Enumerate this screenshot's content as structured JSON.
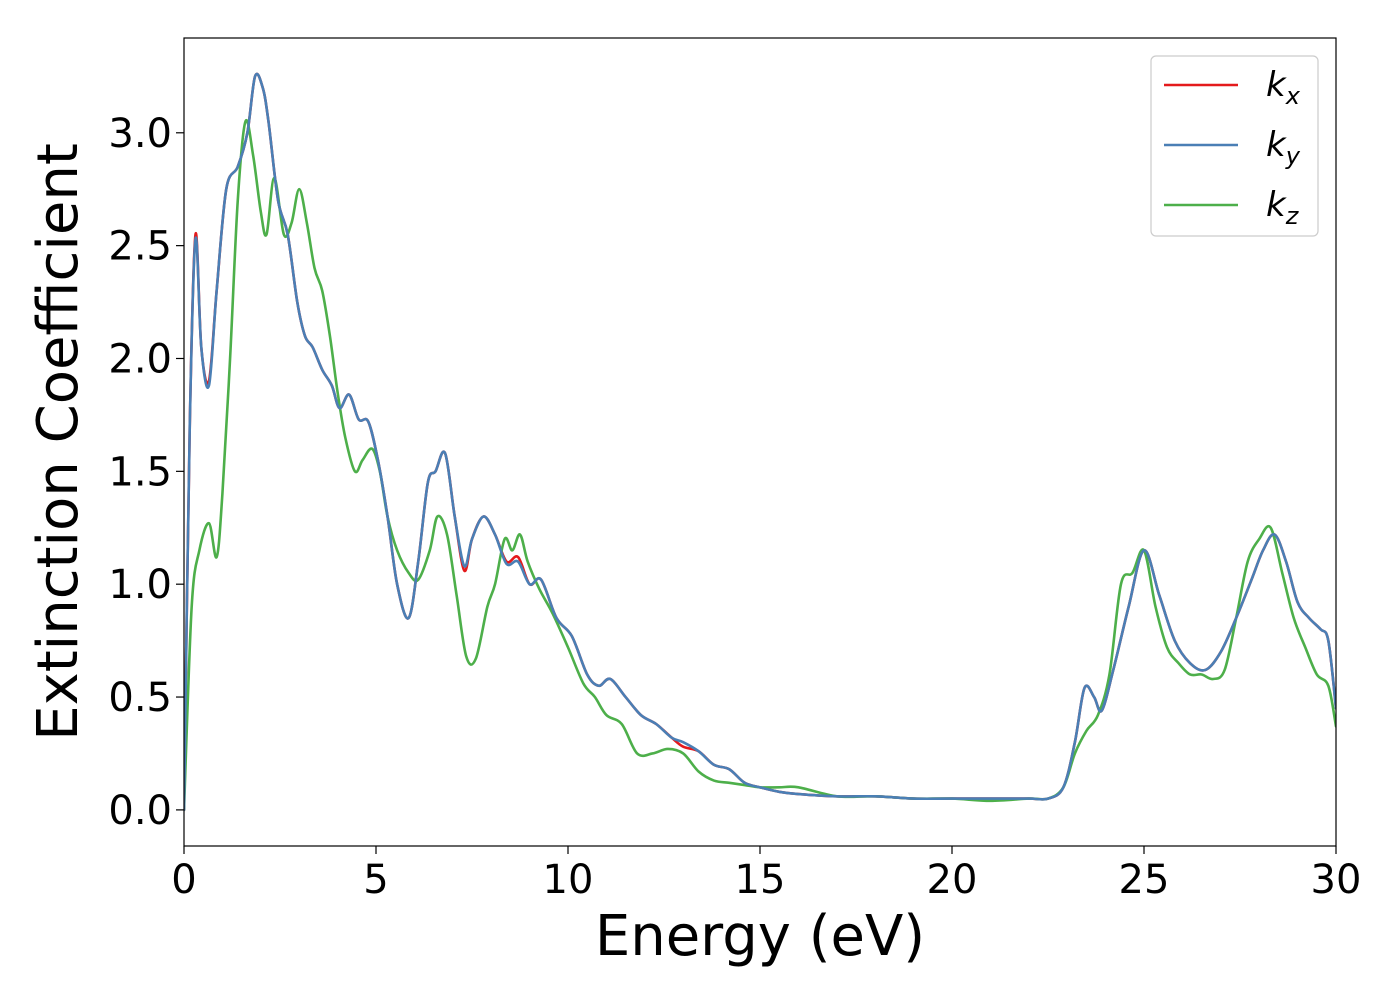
{
  "chart_data": {
    "type": "line",
    "title": "",
    "xlabel": "Energy (eV)",
    "ylabel": "Extinction Coefficient",
    "xlim": [
      0,
      30
    ],
    "ylim": [
      -0.16,
      3.42
    ],
    "xticks": [
      0,
      5,
      10,
      15,
      20,
      25,
      30
    ],
    "xtick_labels": [
      "0",
      "5",
      "10",
      "15",
      "20",
      "25",
      "30"
    ],
    "yticks": [
      0.0,
      0.5,
      1.0,
      1.5,
      2.0,
      2.5,
      3.0
    ],
    "ytick_labels": [
      "0.0",
      "0.5",
      "1.0",
      "1.5",
      "2.0",
      "2.5",
      "3.0"
    ],
    "grid": false,
    "legend_position": "top-right",
    "series": [
      {
        "name": "k_x",
        "label_main": "k",
        "label_sub": "x",
        "color": "#e41a1c",
        "x": [
          0,
          0.15,
          0.3,
          0.45,
          0.65,
          0.85,
          1.1,
          1.4,
          1.65,
          1.85,
          2.05,
          2.2,
          2.45,
          2.7,
          2.95,
          3.15,
          3.35,
          3.6,
          3.85,
          4.05,
          4.3,
          4.55,
          4.8,
          5.05,
          5.3,
          5.55,
          5.85,
          6.1,
          6.35,
          6.55,
          6.8,
          7.05,
          7.3,
          7.5,
          7.8,
          8.1,
          8.4,
          8.7,
          9.0,
          9.3,
          9.7,
          10.1,
          10.5,
          10.8,
          11.1,
          11.5,
          11.9,
          12.3,
          12.7,
          13.0,
          13.4,
          13.8,
          14.2,
          14.6,
          15.0,
          15.5,
          16.0,
          17.0,
          18.0,
          19.0,
          20.0,
          21.0,
          22.0,
          22.5,
          22.9,
          23.2,
          23.45,
          23.7,
          23.9,
          24.2,
          24.6,
          25.0,
          25.4,
          25.8,
          26.2,
          26.6,
          27.0,
          27.4,
          27.8,
          28.1,
          28.4,
          28.7,
          29.0,
          29.3,
          29.6,
          29.8,
          30.0
        ],
        "y": [
          0.0,
          1.7,
          2.55,
          2.05,
          1.9,
          2.3,
          2.75,
          2.85,
          3.0,
          3.25,
          3.2,
          3.05,
          2.7,
          2.55,
          2.25,
          2.1,
          2.05,
          1.95,
          1.88,
          1.78,
          1.84,
          1.73,
          1.72,
          1.55,
          1.3,
          1.0,
          0.85,
          1.1,
          1.45,
          1.5,
          1.58,
          1.3,
          1.06,
          1.2,
          1.3,
          1.22,
          1.1,
          1.12,
          1.0,
          1.02,
          0.85,
          0.77,
          0.6,
          0.55,
          0.58,
          0.5,
          0.42,
          0.38,
          0.32,
          0.28,
          0.26,
          0.2,
          0.18,
          0.12,
          0.1,
          0.08,
          0.07,
          0.06,
          0.06,
          0.05,
          0.05,
          0.05,
          0.05,
          0.05,
          0.1,
          0.3,
          0.54,
          0.5,
          0.44,
          0.62,
          0.9,
          1.15,
          0.95,
          0.75,
          0.65,
          0.62,
          0.7,
          0.85,
          1.02,
          1.15,
          1.22,
          1.1,
          0.92,
          0.85,
          0.8,
          0.75,
          0.45
        ]
      },
      {
        "name": "k_y",
        "label_main": "k",
        "label_sub": "y",
        "color": "#4a7fb5",
        "x": [
          0,
          0.15,
          0.3,
          0.45,
          0.65,
          0.85,
          1.1,
          1.4,
          1.65,
          1.85,
          2.05,
          2.2,
          2.45,
          2.7,
          2.95,
          3.15,
          3.35,
          3.6,
          3.85,
          4.05,
          4.3,
          4.55,
          4.8,
          5.05,
          5.3,
          5.55,
          5.85,
          6.1,
          6.35,
          6.55,
          6.8,
          7.05,
          7.3,
          7.5,
          7.8,
          8.1,
          8.4,
          8.7,
          9.0,
          9.3,
          9.7,
          10.1,
          10.5,
          10.8,
          11.1,
          11.5,
          11.9,
          12.3,
          12.7,
          13.0,
          13.4,
          13.8,
          14.2,
          14.6,
          15.0,
          15.5,
          16.0,
          17.0,
          18.0,
          19.0,
          20.0,
          21.0,
          22.0,
          22.5,
          22.9,
          23.2,
          23.45,
          23.7,
          23.9,
          24.2,
          24.6,
          25.0,
          25.4,
          25.8,
          26.2,
          26.6,
          27.0,
          27.4,
          27.8,
          28.1,
          28.4,
          28.7,
          29.0,
          29.3,
          29.6,
          29.8,
          30.0
        ],
        "y": [
          0.0,
          1.7,
          2.53,
          2.05,
          1.88,
          2.3,
          2.75,
          2.85,
          3.0,
          3.25,
          3.2,
          3.05,
          2.7,
          2.55,
          2.25,
          2.1,
          2.05,
          1.95,
          1.88,
          1.78,
          1.84,
          1.73,
          1.72,
          1.55,
          1.3,
          1.0,
          0.85,
          1.1,
          1.45,
          1.5,
          1.58,
          1.3,
          1.08,
          1.2,
          1.3,
          1.22,
          1.09,
          1.1,
          1.0,
          1.02,
          0.85,
          0.77,
          0.6,
          0.55,
          0.58,
          0.5,
          0.42,
          0.38,
          0.32,
          0.3,
          0.26,
          0.2,
          0.18,
          0.12,
          0.1,
          0.08,
          0.07,
          0.06,
          0.06,
          0.05,
          0.05,
          0.05,
          0.05,
          0.05,
          0.1,
          0.3,
          0.54,
          0.5,
          0.44,
          0.62,
          0.9,
          1.15,
          0.95,
          0.75,
          0.65,
          0.62,
          0.7,
          0.85,
          1.02,
          1.15,
          1.22,
          1.1,
          0.92,
          0.85,
          0.8,
          0.75,
          0.45
        ]
      },
      {
        "name": "k_z",
        "label_main": "k",
        "label_sub": "z",
        "color": "#4daf4a",
        "x": [
          0,
          0.2,
          0.4,
          0.65,
          0.85,
          1.0,
          1.2,
          1.4,
          1.6,
          1.8,
          2.0,
          2.15,
          2.35,
          2.6,
          2.8,
          3.0,
          3.2,
          3.4,
          3.6,
          3.8,
          4.0,
          4.2,
          4.45,
          4.65,
          4.9,
          5.1,
          5.3,
          5.55,
          5.85,
          6.1,
          6.4,
          6.6,
          6.85,
          7.1,
          7.35,
          7.6,
          7.9,
          8.1,
          8.35,
          8.55,
          8.75,
          8.95,
          9.25,
          9.6,
          10.0,
          10.4,
          10.7,
          11.0,
          11.4,
          11.8,
          12.2,
          12.6,
          13.0,
          13.4,
          13.8,
          14.2,
          14.6,
          15.0,
          15.5,
          16.0,
          17.0,
          18.0,
          19.0,
          20.0,
          21.0,
          22.0,
          22.5,
          22.9,
          23.2,
          23.5,
          23.8,
          24.1,
          24.4,
          24.7,
          25.0,
          25.3,
          25.6,
          25.9,
          26.2,
          26.5,
          26.8,
          27.1,
          27.4,
          27.7,
          28.0,
          28.3,
          28.6,
          28.9,
          29.2,
          29.5,
          29.8,
          30.0
        ],
        "y": [
          0.0,
          0.9,
          1.15,
          1.27,
          1.12,
          1.4,
          2.0,
          2.7,
          3.05,
          2.9,
          2.65,
          2.55,
          2.8,
          2.55,
          2.6,
          2.75,
          2.6,
          2.4,
          2.3,
          2.1,
          1.85,
          1.65,
          1.5,
          1.55,
          1.6,
          1.5,
          1.3,
          1.15,
          1.05,
          1.02,
          1.15,
          1.3,
          1.22,
          0.95,
          0.68,
          0.67,
          0.9,
          1.0,
          1.2,
          1.15,
          1.22,
          1.1,
          0.98,
          0.87,
          0.72,
          0.56,
          0.5,
          0.42,
          0.38,
          0.25,
          0.25,
          0.27,
          0.25,
          0.17,
          0.13,
          0.12,
          0.11,
          0.1,
          0.1,
          0.1,
          0.06,
          0.06,
          0.05,
          0.05,
          0.04,
          0.05,
          0.05,
          0.1,
          0.25,
          0.35,
          0.42,
          0.6,
          1.0,
          1.05,
          1.15,
          0.9,
          0.72,
          0.65,
          0.6,
          0.6,
          0.58,
          0.62,
          0.85,
          1.1,
          1.2,
          1.25,
          1.05,
          0.85,
          0.72,
          0.6,
          0.55,
          0.37
        ]
      }
    ]
  }
}
